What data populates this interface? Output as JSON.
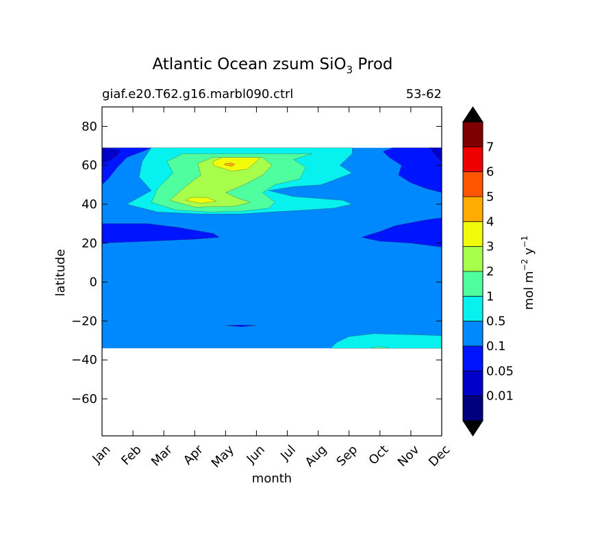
{
  "chart_data": {
    "type": "heatmap",
    "subtype": "filled-contour",
    "title": {
      "main": "Atlantic Ocean zsum SiO",
      "subscript": "3",
      "suffix": " Prod"
    },
    "subtitle_left": "giaf.e20.T62.g16.marbl090.ctrl",
    "subtitle_right": "53-62",
    "xlabel": "month",
    "ylabel": "latitude",
    "x_ticks": [
      "Jan",
      "Feb",
      "Mar",
      "Apr",
      "May",
      "Jun",
      "Jul",
      "Aug",
      "Sep",
      "Oct",
      "Nov",
      "Dec"
    ],
    "y_ticks": [
      "80",
      "60",
      "40",
      "20",
      "0",
      "−20",
      "−40",
      "−60"
    ],
    "y_tick_values": [
      80,
      60,
      40,
      20,
      0,
      -20,
      -40,
      -60
    ],
    "xlim": [
      1,
      12
    ],
    "ylim": [
      -79,
      90
    ],
    "data_lat_range": [
      -34,
      69
    ],
    "colorbar": {
      "label_main": "mol m",
      "label_exp1": "−2",
      "label_mid": " y",
      "label_exp2": "−1",
      "extend": "both",
      "levels": [
        "0.01",
        "0.05",
        "0.1",
        "0.5",
        "1",
        "2",
        "3",
        "4",
        "5",
        "6",
        "7"
      ],
      "colors": [
        "#00007f",
        "#0000c8",
        "#0015ff",
        "#0089ff",
        "#07f1ee",
        "#4fff9f",
        "#a8ff4b",
        "#f1fc0a",
        "#ffac00",
        "#ff5500",
        "#ef0000",
        "#7f0000"
      ],
      "under_color": "#000000",
      "over_color": "#000000"
    },
    "background_value_class": "0.1-0.5",
    "regions": [
      {
        "range": "0.05-0.1",
        "months": [
          1,
          12
        ],
        "lat": [
          46,
          69
        ],
        "note": "high-latitude winter, Jan-Feb and Oct-Dec"
      },
      {
        "range": "0.01-0.05",
        "months": [
          1,
          1.5
        ],
        "lat": [
          61,
          69
        ]
      },
      {
        "range": "0.05-0.1",
        "months": [
          1,
          4.8
        ],
        "lat": [
          20,
          30
        ]
      },
      {
        "range": "0.05-0.1",
        "months": [
          9.4,
          12
        ],
        "lat": [
          18,
          33
        ]
      },
      {
        "range": "0.05-0.1",
        "months": [
          5,
          6
        ],
        "lat": [
          -23,
          -22
        ]
      },
      {
        "range": "0.5-1",
        "months": [
          1.8,
          9.1
        ],
        "lat": [
          35,
          69
        ]
      },
      {
        "range": "1-2",
        "months": [
          2.6,
          7.8
        ],
        "lat": [
          36,
          66
        ]
      },
      {
        "range": "2-3",
        "months": [
          3.2,
          6.5
        ],
        "lat": [
          38,
          64
        ]
      },
      {
        "range": "3-4",
        "months": [
          4.6,
          6
        ],
        "lat": [
          57,
          64
        ]
      },
      {
        "range": "3-4",
        "months": [
          3.7,
          4.7
        ],
        "lat": [
          40,
          43
        ]
      },
      {
        "range": "4-5",
        "months": [
          4.9,
          5.2
        ],
        "lat": [
          59,
          61
        ]
      },
      {
        "range": "0.5-1",
        "months": [
          8.4,
          12
        ],
        "lat": [
          -34,
          -27
        ]
      },
      {
        "range": "1-2",
        "months": [
          9.7,
          10.2
        ],
        "lat": [
          -34,
          -33
        ]
      }
    ]
  }
}
